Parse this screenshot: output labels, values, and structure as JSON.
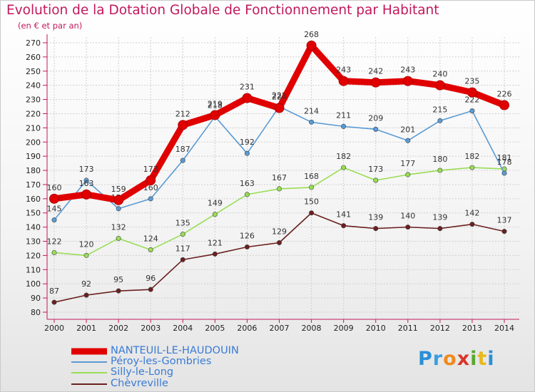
{
  "header": {
    "title": "Evolution de la Dotation Globale de Fonctionnement par Habitant",
    "subtitle": "(en € et par an)"
  },
  "logo": {
    "text": "Proxiti"
  },
  "chart_data": {
    "type": "line",
    "title": "Evolution de la Dotation Globale de Fonctionnement par Habitant",
    "subtitle": "(en € et par an)",
    "xlabel": "",
    "ylabel": "",
    "ylim": [
      80,
      270
    ],
    "yticks": [
      80,
      90,
      100,
      110,
      120,
      130,
      140,
      150,
      160,
      170,
      180,
      190,
      200,
      210,
      220,
      230,
      240,
      250,
      260,
      270
    ],
    "grid": true,
    "legend_position": "bottom-left",
    "x": [
      "2000",
      "2001",
      "2002",
      "2003",
      "2004",
      "2005",
      "2006",
      "2007",
      "2008",
      "2009",
      "2010",
      "2011",
      "2012",
      "2013",
      "2014"
    ],
    "series": [
      {
        "name": "NANTEUIL-LE-HAUDOUIN",
        "color": "#e00000",
        "values": [
          160,
          163,
          159,
          173,
          212,
          219,
          231,
          224,
          268,
          243,
          242,
          243,
          240,
          235,
          226
        ],
        "labels": [
          "160",
          "163",
          "159",
          "173",
          "212",
          "219",
          "231",
          "224",
          "268",
          "243",
          "242",
          "243",
          "240",
          "235",
          "226"
        ]
      },
      {
        "name": "Péroy-les-Gombries",
        "color": "#5a9bd4",
        "values": [
          145,
          173,
          153,
          160,
          187,
          218,
          192,
          225,
          214,
          211,
          209,
          201,
          215,
          222,
          178
        ],
        "labels": [
          "145",
          "173",
          "153",
          "160",
          "187",
          "218",
          "192",
          "225",
          "214",
          "211",
          "209",
          "201",
          "215",
          "222",
          "178"
        ]
      },
      {
        "name": "Silly-le-Long",
        "color": "#99dd55",
        "values": [
          122,
          120,
          132,
          124,
          135,
          149,
          163,
          167,
          168,
          182,
          173,
          177,
          180,
          182,
          181
        ],
        "labels": [
          "122",
          "120",
          "132",
          "124",
          "135",
          "149",
          "163",
          "167",
          "168",
          "182",
          "173",
          "177",
          "180",
          "182",
          "181"
        ]
      },
      {
        "name": "Chèvreville",
        "color": "#6b1f1f",
        "values": [
          87,
          92,
          95,
          96,
          117,
          121,
          126,
          129,
          150,
          141,
          139,
          140,
          139,
          142,
          137
        ],
        "labels": [
          "87",
          "92",
          "95",
          "96",
          "117",
          "121",
          "126",
          "129",
          "150",
          "141",
          "139",
          "140",
          "139",
          "142",
          "137"
        ]
      }
    ]
  }
}
